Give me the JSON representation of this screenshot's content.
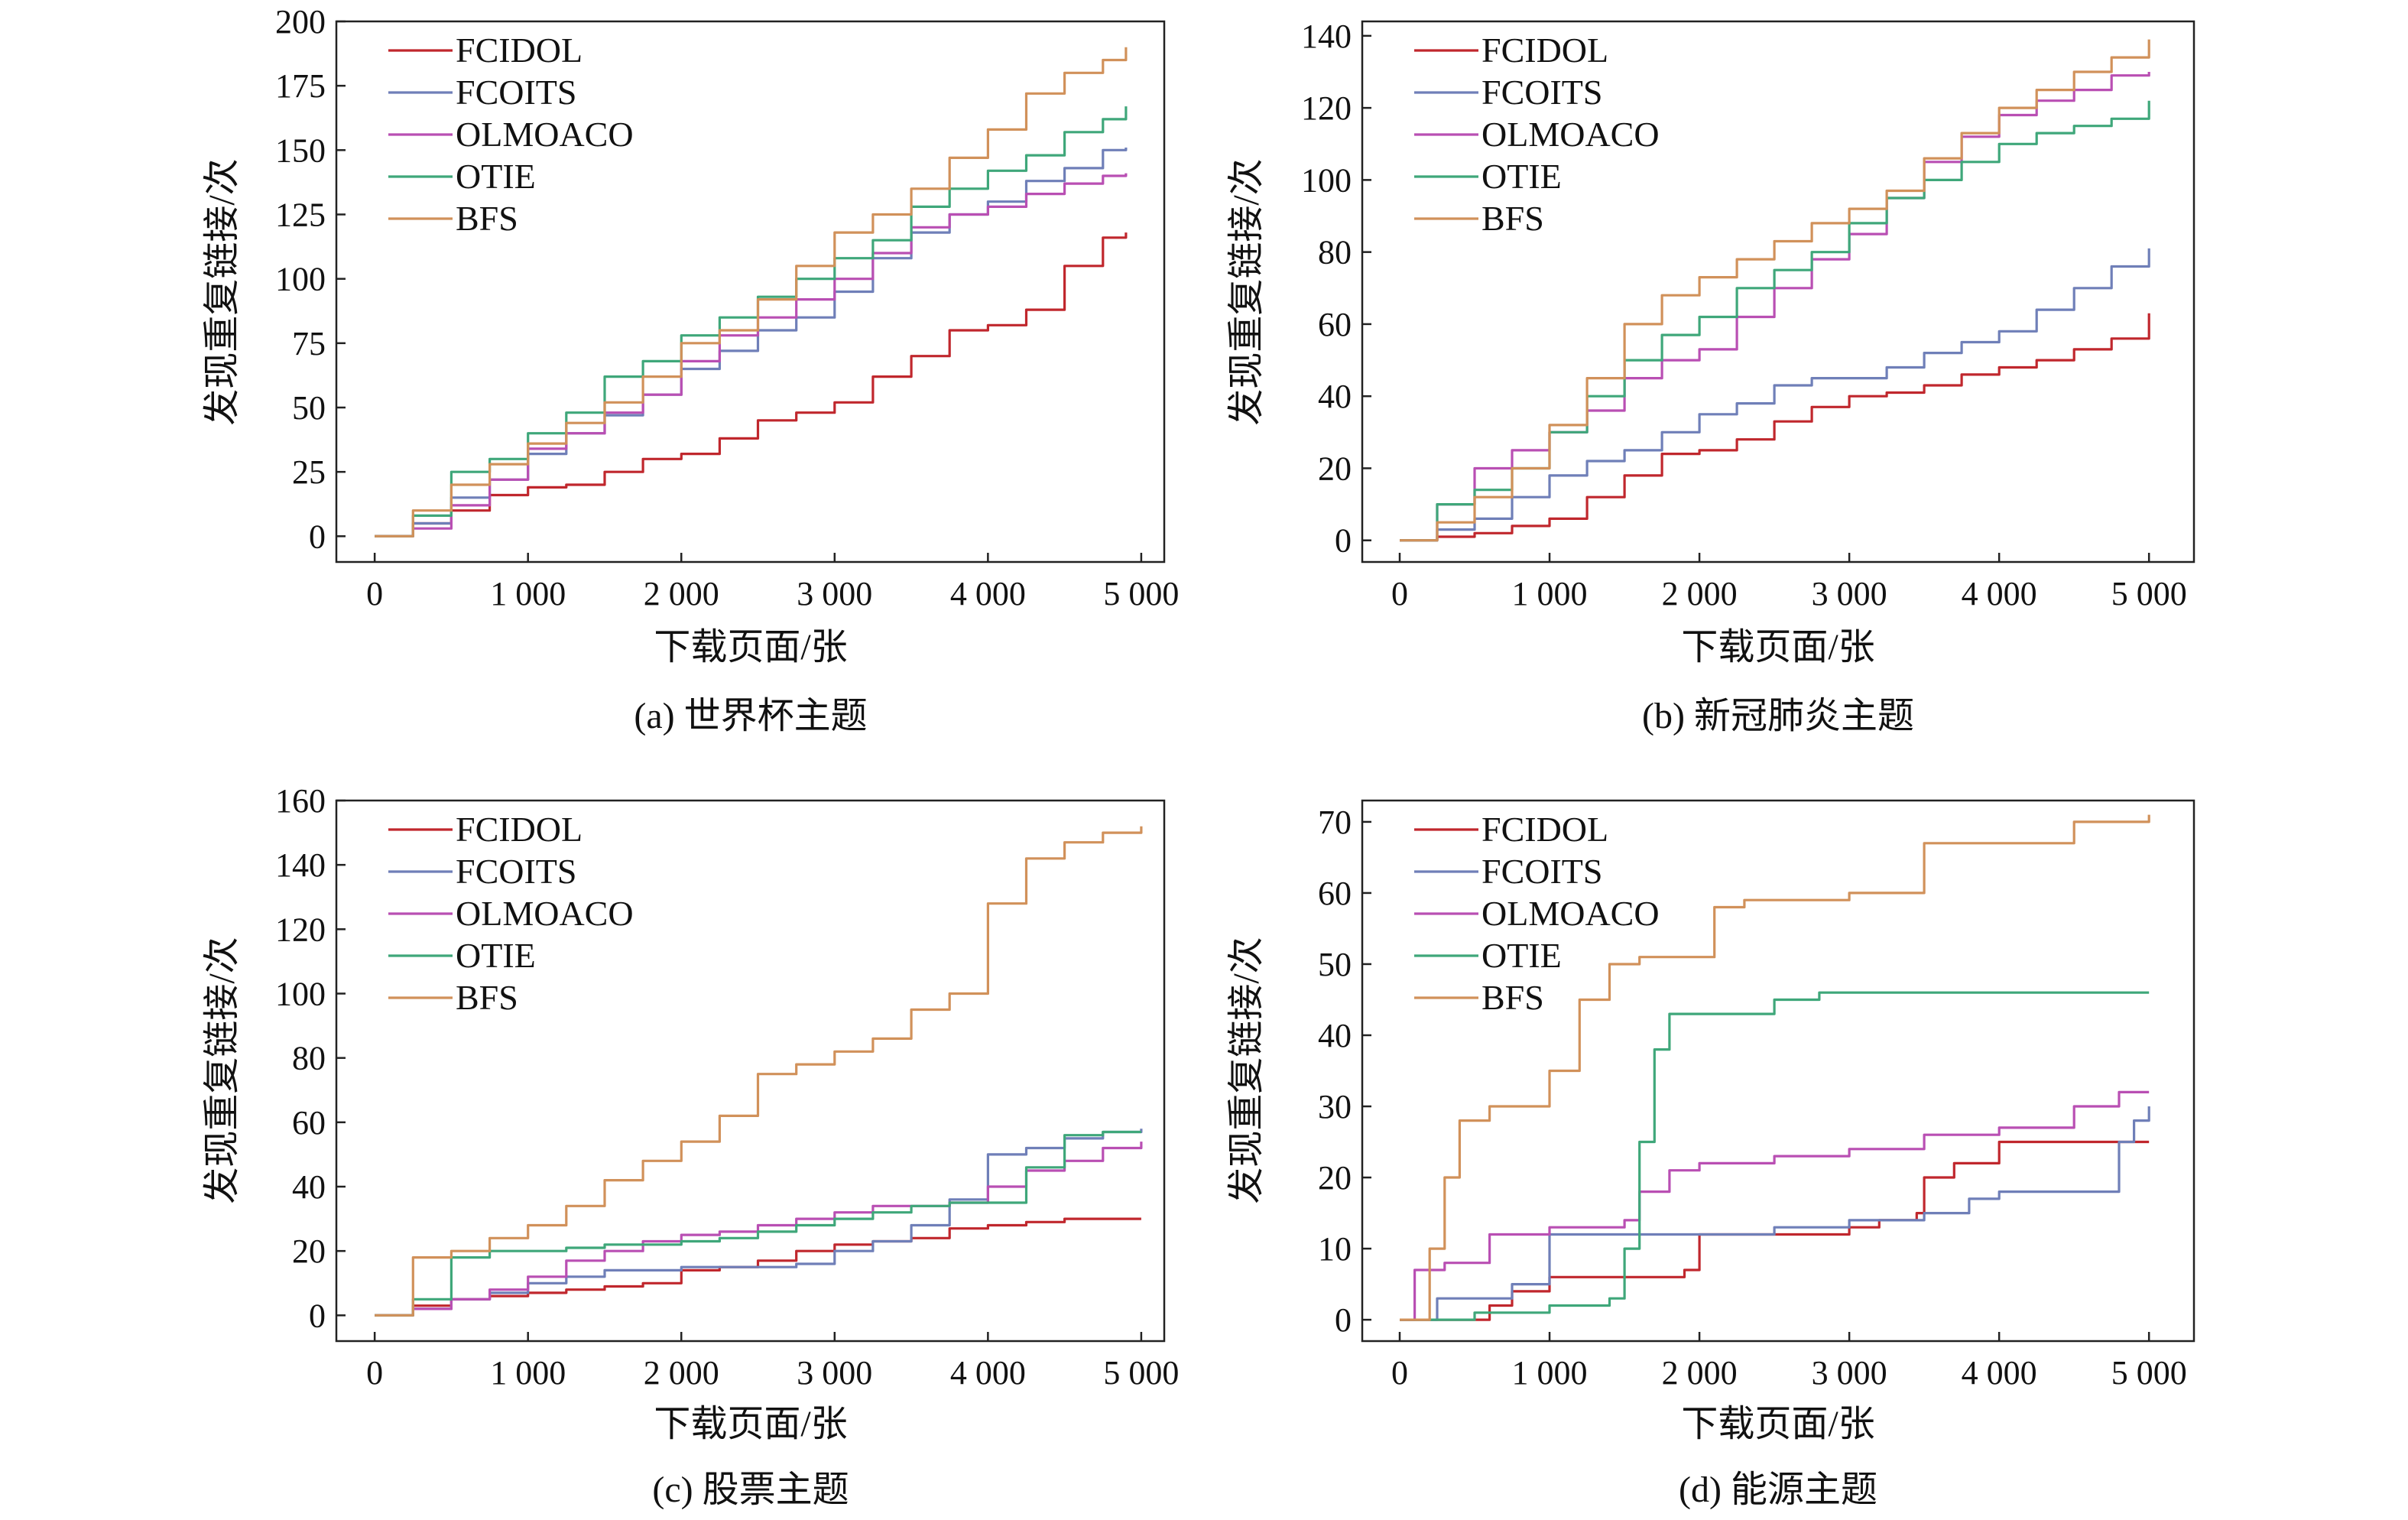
{
  "colors": {
    "FCIDOL": "#c0272d",
    "FCOITS": "#6f7fb8",
    "OLMOACO": "#b94fb3",
    "OTIE": "#3fa77a",
    "BFS": "#d1915a"
  },
  "chart_data": [
    {
      "type": "line",
      "title": "(a) 世界杯主题",
      "xlabel": "下载页面/张",
      "ylabel": "发现重复链接/次",
      "xlim": [
        -250,
        5150
      ],
      "ylim": [
        -10,
        200
      ],
      "x_ticks": [
        0,
        1000,
        2000,
        3000,
        4000,
        5000
      ],
      "x_tick_labels": [
        "0",
        "1 000",
        "2 000",
        "3 000",
        "4 000",
        "5 000"
      ],
      "y_ticks": [
        0,
        25,
        50,
        75,
        100,
        125,
        150,
        175,
        200
      ],
      "y_tick_labels": [
        "0",
        "25",
        "50",
        "75",
        "100",
        "125",
        "150",
        "175",
        "200"
      ],
      "grid": false,
      "legend": "top-left",
      "series": [
        {
          "name": "FCIDOL",
          "x": [
            0,
            250,
            500,
            750,
            1000,
            1250,
            1500,
            1750,
            2000,
            2250,
            2500,
            2750,
            3000,
            3250,
            3500,
            3750,
            4000,
            4250,
            4500,
            4750,
            4900
          ],
          "y": [
            0,
            5,
            10,
            16,
            19,
            20,
            25,
            30,
            32,
            38,
            45,
            48,
            52,
            62,
            70,
            80,
            82,
            88,
            105,
            116,
            118
          ]
        },
        {
          "name": "FCOITS",
          "x": [
            0,
            250,
            500,
            750,
            1000,
            1250,
            1500,
            1750,
            2000,
            2250,
            2500,
            2750,
            3000,
            3250,
            3500,
            3750,
            4000,
            4250,
            4500,
            4750,
            4900
          ],
          "y": [
            0,
            5,
            15,
            22,
            32,
            40,
            47,
            55,
            65,
            72,
            80,
            85,
            95,
            108,
            118,
            125,
            130,
            138,
            143,
            150,
            151
          ]
        },
        {
          "name": "OLMOACO",
          "x": [
            0,
            250,
            500,
            750,
            1000,
            1250,
            1500,
            1750,
            2000,
            2250,
            2500,
            2750,
            3000,
            3250,
            3500,
            3750,
            4000,
            4250,
            4500,
            4750,
            4900
          ],
          "y": [
            0,
            3,
            12,
            22,
            34,
            40,
            48,
            55,
            68,
            78,
            85,
            92,
            100,
            110,
            120,
            125,
            128,
            133,
            137,
            140,
            141
          ]
        },
        {
          "name": "OTIE",
          "x": [
            0,
            250,
            500,
            750,
            1000,
            1250,
            1500,
            1750,
            2000,
            2250,
            2500,
            2750,
            3000,
            3250,
            3500,
            3750,
            4000,
            4250,
            4500,
            4750,
            4900
          ],
          "y": [
            0,
            8,
            25,
            30,
            40,
            48,
            62,
            68,
            78,
            85,
            93,
            100,
            108,
            115,
            128,
            135,
            142,
            148,
            157,
            162,
            167
          ]
        },
        {
          "name": "BFS",
          "x": [
            0,
            250,
            500,
            750,
            1000,
            1250,
            1500,
            1750,
            2000,
            2250,
            2500,
            2750,
            3000,
            3250,
            3500,
            3750,
            4000,
            4250,
            4500,
            4750,
            4900
          ],
          "y": [
            0,
            10,
            20,
            28,
            36,
            44,
            52,
            62,
            75,
            80,
            92,
            105,
            118,
            125,
            135,
            147,
            158,
            172,
            180,
            185,
            190
          ]
        }
      ]
    },
    {
      "type": "line",
      "title": "(b) 新冠肺炎主题",
      "xlabel": "下载页面/张",
      "ylabel": "发现重复链接/次",
      "xlim": [
        -250,
        5300
      ],
      "ylim": [
        -6,
        144
      ],
      "x_ticks": [
        0,
        1000,
        2000,
        3000,
        4000,
        5000
      ],
      "x_tick_labels": [
        "0",
        "1 000",
        "2 000",
        "3 000",
        "4 000",
        "5 000"
      ],
      "y_ticks": [
        0,
        20,
        40,
        60,
        80,
        100,
        120,
        140
      ],
      "y_tick_labels": [
        "0",
        "20",
        "40",
        "60",
        "80",
        "100",
        "120",
        "140"
      ],
      "grid": false,
      "legend": "top-left",
      "series": [
        {
          "name": "FCIDOL",
          "x": [
            0,
            250,
            500,
            750,
            1000,
            1250,
            1500,
            1750,
            2000,
            2250,
            2500,
            2750,
            3000,
            3250,
            3500,
            3750,
            4000,
            4250,
            4500,
            4750,
            5000
          ],
          "y": [
            0,
            1,
            2,
            4,
            6,
            12,
            18,
            24,
            25,
            28,
            33,
            37,
            40,
            41,
            43,
            46,
            48,
            50,
            53,
            56,
            63
          ]
        },
        {
          "name": "FCOITS",
          "x": [
            0,
            250,
            500,
            750,
            1000,
            1250,
            1500,
            1750,
            2000,
            2250,
            2500,
            2750,
            3000,
            3250,
            3500,
            3750,
            4000,
            4250,
            4500,
            4750,
            5000
          ],
          "y": [
            0,
            3,
            6,
            12,
            18,
            22,
            25,
            30,
            35,
            38,
            43,
            45,
            45,
            48,
            52,
            55,
            58,
            64,
            70,
            76,
            81
          ]
        },
        {
          "name": "OLMOACO",
          "x": [
            0,
            250,
            500,
            750,
            1000,
            1250,
            1500,
            1750,
            2000,
            2250,
            2500,
            2750,
            3000,
            3250,
            3500,
            3750,
            4000,
            4250,
            4500,
            4750,
            5000
          ],
          "y": [
            0,
            10,
            20,
            25,
            30,
            36,
            45,
            50,
            53,
            62,
            70,
            78,
            85,
            95,
            105,
            112,
            118,
            122,
            125,
            129,
            130
          ]
        },
        {
          "name": "OTIE",
          "x": [
            0,
            250,
            500,
            750,
            1000,
            1250,
            1500,
            1750,
            2000,
            2250,
            2500,
            2750,
            3000,
            3250,
            3500,
            3750,
            4000,
            4250,
            4500,
            4750,
            5000
          ],
          "y": [
            0,
            10,
            14,
            20,
            30,
            40,
            50,
            57,
            62,
            70,
            75,
            80,
            88,
            95,
            100,
            105,
            110,
            113,
            115,
            117,
            122
          ]
        },
        {
          "name": "BFS",
          "x": [
            0,
            250,
            500,
            750,
            1000,
            1250,
            1500,
            1750,
            2000,
            2250,
            2500,
            2750,
            3000,
            3250,
            3500,
            3750,
            4000,
            4250,
            4500,
            4750,
            5000
          ],
          "y": [
            0,
            5,
            12,
            20,
            32,
            45,
            60,
            68,
            73,
            78,
            83,
            88,
            92,
            97,
            106,
            113,
            120,
            125,
            130,
            134,
            139
          ]
        }
      ]
    },
    {
      "type": "line",
      "title": "(c) 股票主题",
      "xlabel": "下载页面/张",
      "ylabel": "发现重复链接/次",
      "xlim": [
        -250,
        5150
      ],
      "ylim": [
        -8,
        160
      ],
      "x_ticks": [
        0,
        1000,
        2000,
        3000,
        4000,
        5000
      ],
      "x_tick_labels": [
        "0",
        "1 000",
        "2 000",
        "3 000",
        "4 000",
        "5 000"
      ],
      "y_ticks": [
        0,
        20,
        40,
        60,
        80,
        100,
        120,
        140,
        160
      ],
      "y_tick_labels": [
        "0",
        "20",
        "40",
        "60",
        "80",
        "100",
        "120",
        "140",
        "160"
      ],
      "grid": false,
      "legend": "top-left",
      "series": [
        {
          "name": "FCIDOL",
          "x": [
            0,
            250,
            500,
            750,
            1000,
            1250,
            1500,
            1750,
            2000,
            2250,
            2500,
            2750,
            3000,
            3250,
            3500,
            3750,
            4000,
            4250,
            4500,
            4750,
            5000
          ],
          "y": [
            0,
            3,
            5,
            6,
            7,
            8,
            9,
            10,
            14,
            15,
            17,
            20,
            22,
            23,
            24,
            27,
            28,
            29,
            30,
            30,
            30
          ]
        },
        {
          "name": "FCOITS",
          "x": [
            0,
            250,
            500,
            750,
            1000,
            1250,
            1500,
            1750,
            2000,
            2250,
            2500,
            2750,
            3000,
            3250,
            3500,
            3750,
            4000,
            4250,
            4500,
            4750,
            5000
          ],
          "y": [
            0,
            2,
            5,
            7,
            10,
            12,
            14,
            14,
            15,
            15,
            15,
            16,
            20,
            23,
            28,
            36,
            50,
            52,
            55,
            57,
            58
          ]
        },
        {
          "name": "OLMOACO",
          "x": [
            0,
            250,
            500,
            750,
            1000,
            1250,
            1500,
            1750,
            2000,
            2250,
            2500,
            2750,
            3000,
            3250,
            3500,
            3750,
            4000,
            4250,
            4500,
            4750,
            5000
          ],
          "y": [
            0,
            2,
            5,
            8,
            12,
            17,
            20,
            23,
            25,
            26,
            28,
            30,
            32,
            34,
            34,
            35,
            40,
            45,
            48,
            52,
            54
          ]
        },
        {
          "name": "OTIE",
          "x": [
            0,
            250,
            500,
            750,
            1000,
            1250,
            1500,
            1750,
            2000,
            2250,
            2500,
            2750,
            3000,
            3250,
            3500,
            3750,
            4000,
            4250,
            4500,
            4750,
            5000
          ],
          "y": [
            0,
            5,
            18,
            20,
            20,
            21,
            22,
            22,
            23,
            24,
            26,
            28,
            30,
            32,
            34,
            35,
            35,
            46,
            56,
            57,
            57
          ]
        },
        {
          "name": "BFS",
          "x": [
            0,
            250,
            500,
            750,
            1000,
            1250,
            1500,
            1750,
            2000,
            2250,
            2500,
            2750,
            3000,
            3250,
            3500,
            3750,
            4000,
            4250,
            4500,
            4750,
            5000
          ],
          "y": [
            0,
            18,
            20,
            24,
            28,
            34,
            42,
            48,
            54,
            62,
            75,
            78,
            82,
            86,
            95,
            100,
            128,
            142,
            147,
            150,
            152
          ]
        }
      ]
    },
    {
      "type": "line",
      "title": "(d) 能源主题",
      "xlabel": "下载页面/张",
      "ylabel": "发现重复链接/次",
      "xlim": [
        -250,
        5300
      ],
      "ylim": [
        -3,
        73
      ],
      "x_ticks": [
        0,
        1000,
        2000,
        3000,
        4000,
        5000
      ],
      "x_tick_labels": [
        "0",
        "1 000",
        "2 000",
        "3 000",
        "4 000",
        "5 000"
      ],
      "y_ticks": [
        0,
        10,
        20,
        30,
        40,
        50,
        60,
        70
      ],
      "y_tick_labels": [
        "0",
        "10",
        "20",
        "30",
        "40",
        "50",
        "60",
        "70"
      ],
      "grid": false,
      "legend": "top-left",
      "series": [
        {
          "name": "FCIDOL",
          "x": [
            0,
            300,
            600,
            750,
            1000,
            1500,
            1900,
            2000,
            2600,
            3000,
            3200,
            3450,
            3500,
            3700,
            4000,
            4500,
            5000
          ],
          "y": [
            0,
            0,
            2,
            4,
            6,
            6,
            7,
            12,
            12,
            13,
            14,
            15,
            20,
            22,
            25,
            25,
            25
          ]
        },
        {
          "name": "FCOITS",
          "x": [
            0,
            250,
            500,
            750,
            1000,
            1500,
            2000,
            2500,
            3000,
            3500,
            3800,
            4000,
            4500,
            4800,
            4900,
            5000
          ],
          "y": [
            0,
            3,
            3,
            5,
            12,
            12,
            12,
            13,
            14,
            15,
            17,
            18,
            18,
            25,
            28,
            30
          ]
        },
        {
          "name": "OLMOACO",
          "x": [
            0,
            100,
            300,
            600,
            1000,
            1500,
            1600,
            1800,
            2000,
            2500,
            3000,
            3500,
            4000,
            4500,
            4800,
            5000
          ],
          "y": [
            0,
            7,
            8,
            12,
            13,
            14,
            18,
            21,
            22,
            23,
            24,
            26,
            27,
            30,
            32,
            32
          ]
        },
        {
          "name": "OTIE",
          "x": [
            0,
            500,
            1000,
            1400,
            1500,
            1600,
            1700,
            1800,
            2000,
            2500,
            2800,
            3000,
            4000,
            5000
          ],
          "y": [
            0,
            1,
            2,
            3,
            10,
            25,
            38,
            43,
            43,
            45,
            46,
            46,
            46,
            46
          ]
        },
        {
          "name": "BFS",
          "x": [
            0,
            200,
            300,
            400,
            600,
            1000,
            1200,
            1400,
            1500,
            1600,
            2000,
            2100,
            2300,
            2600,
            3000,
            3400,
            3500,
            4000,
            4500,
            5000
          ],
          "y": [
            0,
            10,
            20,
            28,
            30,
            35,
            45,
            50,
            50,
            51,
            51,
            58,
            59,
            59,
            60,
            60,
            67,
            67,
            70,
            71
          ]
        }
      ]
    }
  ]
}
